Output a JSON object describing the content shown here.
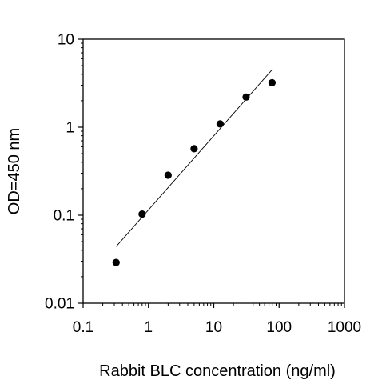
{
  "chart_data": {
    "type": "scatter",
    "title": "",
    "xlabel": "Rabbit BLC concentration (ng/ml)",
    "ylabel": "OD=450 nm",
    "xscale": "log",
    "yscale": "log",
    "xlim": [
      0.1,
      1000
    ],
    "ylim": [
      0.01,
      10
    ],
    "x_ticks": [
      0.1,
      1,
      10,
      100,
      1000
    ],
    "y_ticks": [
      0.01,
      0.1,
      1,
      10
    ],
    "x_tick_labels": [
      "0.1",
      "1",
      "10",
      "100",
      "1000"
    ],
    "y_tick_labels": [
      "0.01",
      "0.1",
      "1",
      "10"
    ],
    "grid": false,
    "legend": "none",
    "series": [
      {
        "marker": "filled-circle",
        "color": "#000000",
        "x": [
          0.32,
          0.8,
          2.0,
          5.0,
          12.5,
          31.25,
          78.0
        ],
        "y": [
          0.029,
          0.103,
          0.285,
          0.57,
          1.09,
          2.2,
          3.2
        ]
      }
    ],
    "trendline": {
      "type": "power-fit",
      "color": "#000000",
      "x": [
        0.32,
        78.0
      ],
      "y": [
        0.044,
        4.5
      ]
    }
  }
}
